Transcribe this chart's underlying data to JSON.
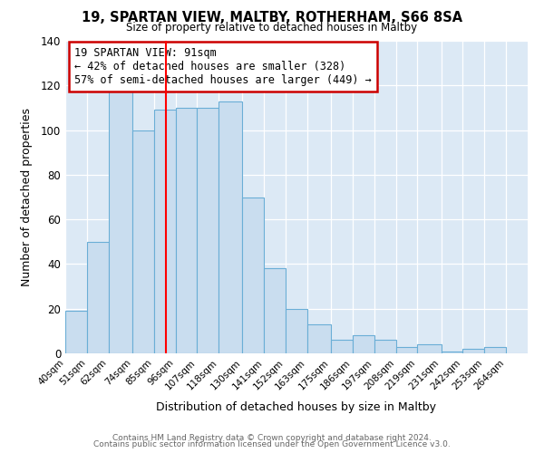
{
  "title": "19, SPARTAN VIEW, MALTBY, ROTHERHAM, S66 8SA",
  "subtitle": "Size of property relative to detached houses in Maltby",
  "xlabel": "Distribution of detached houses by size in Maltby",
  "ylabel": "Number of detached properties",
  "bar_color": "#c9ddef",
  "bar_edge_color": "#6aaed6",
  "plot_bg_color": "#dce9f5",
  "fig_bg_color": "#ffffff",
  "bins": [
    "40sqm",
    "51sqm",
    "62sqm",
    "74sqm",
    "85sqm",
    "96sqm",
    "107sqm",
    "118sqm",
    "130sqm",
    "141sqm",
    "152sqm",
    "163sqm",
    "175sqm",
    "186sqm",
    "197sqm",
    "208sqm",
    "219sqm",
    "231sqm",
    "242sqm",
    "253sqm",
    "264sqm"
  ],
  "values": [
    19,
    50,
    118,
    100,
    109,
    110,
    110,
    113,
    70,
    38,
    20,
    13,
    6,
    8,
    6,
    3,
    4,
    1,
    2,
    3,
    0
  ],
  "bin_edges": [
    40,
    51,
    62,
    74,
    85,
    96,
    107,
    118,
    130,
    141,
    152,
    163,
    175,
    186,
    197,
    208,
    219,
    231,
    242,
    253,
    264,
    275
  ],
  "vline_x": 91,
  "ylim": [
    0,
    140
  ],
  "yticks": [
    0,
    20,
    40,
    60,
    80,
    100,
    120,
    140
  ],
  "annotation_title": "19 SPARTAN VIEW: 91sqm",
  "annotation_line1": "← 42% of detached houses are smaller (328)",
  "annotation_line2": "57% of semi-detached houses are larger (449) →",
  "footnote1": "Contains HM Land Registry data © Crown copyright and database right 2024.",
  "footnote2": "Contains public sector information licensed under the Open Government Licence v3.0."
}
